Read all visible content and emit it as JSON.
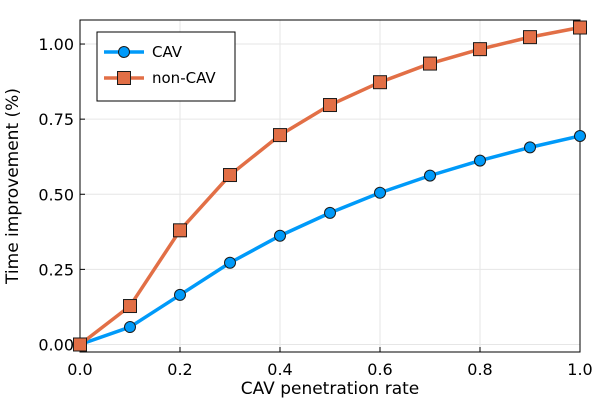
{
  "chart_data": {
    "type": "line",
    "title": "",
    "xlabel": "CAV penetration rate",
    "ylabel": "Time improvement (%)",
    "xlim": [
      0.0,
      1.0
    ],
    "ylim": [
      -0.025,
      1.08
    ],
    "xticks": [
      0.0,
      0.2,
      0.4,
      0.6,
      0.8,
      1.0
    ],
    "xtick_labels": [
      "0.0",
      "0.2",
      "0.4",
      "0.6",
      "0.8",
      "1.0"
    ],
    "yticks": [
      0.0,
      0.25,
      0.5,
      0.75,
      1.0
    ],
    "ytick_labels": [
      "0.00",
      "0.25",
      "0.50",
      "0.75",
      "1.00"
    ],
    "grid": true,
    "legend_position": "top-left",
    "x": [
      0.0,
      0.1,
      0.2,
      0.3,
      0.4,
      0.5,
      0.6,
      0.7,
      0.8,
      0.9,
      1.0
    ],
    "series": [
      {
        "name": "CAV",
        "marker": "circle",
        "color": "#009af9",
        "values": [
          0.0,
          0.058,
          0.165,
          0.272,
          0.362,
          0.438,
          0.505,
          0.562,
          0.612,
          0.656,
          0.694
        ]
      },
      {
        "name": "non-CAV",
        "marker": "square",
        "color": "#e26f46",
        "values": [
          0.0,
          0.128,
          0.38,
          0.564,
          0.697,
          0.797,
          0.873,
          0.935,
          0.983,
          1.023,
          1.055
        ]
      }
    ]
  }
}
